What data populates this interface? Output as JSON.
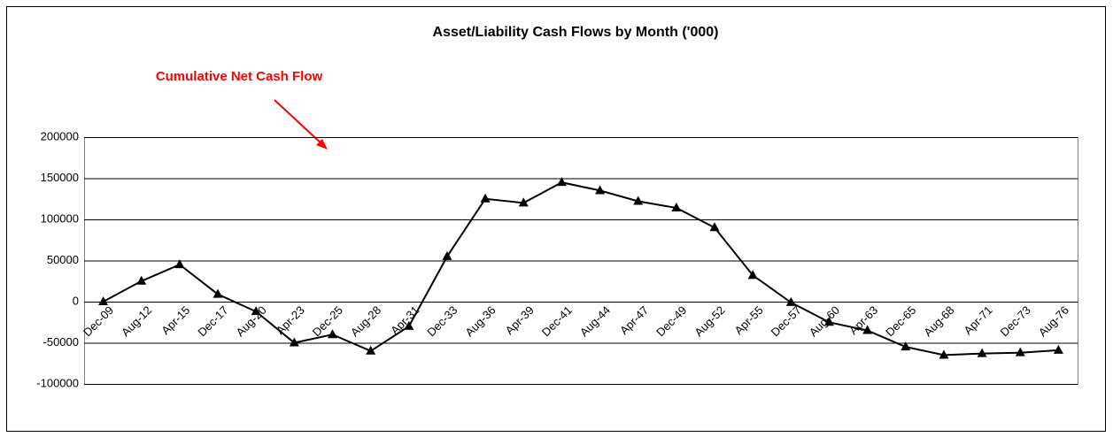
{
  "chart_data": {
    "type": "line",
    "title": "Asset/Liability Cash Flows by Month ('000)",
    "annotation": "Cumulative Net Cash Flow",
    "categories": [
      "Dec-09",
      "Aug-12",
      "Apr-15",
      "Dec-17",
      "Aug-20",
      "Apr-23",
      "Dec-25",
      "Aug-28",
      "Apr-31",
      "Dec-33",
      "Aug-36",
      "Apr-39",
      "Dec-41",
      "Aug-44",
      "Apr-47",
      "Dec-49",
      "Aug-52",
      "Apr-55",
      "Dec-57",
      "Aug-60",
      "Apr-63",
      "Dec-65",
      "Aug-68",
      "Apr-71",
      "Dec-73",
      "Aug-76"
    ],
    "values": [
      0,
      25000,
      45000,
      9000,
      -12000,
      -50000,
      -40000,
      -60000,
      -30000,
      55000,
      125000,
      120000,
      145000,
      135000,
      122000,
      114000,
      90000,
      32000,
      -1000,
      -25000,
      -35000,
      -55000,
      -65000,
      -63000,
      -62000,
      -59000
    ],
    "color": "#000000",
    "annotation_color": "#ff0000",
    "ylim": [
      -100000,
      200000
    ],
    "yticks": [
      -100000,
      -50000,
      0,
      50000,
      100000,
      150000,
      200000
    ],
    "grid": true
  }
}
